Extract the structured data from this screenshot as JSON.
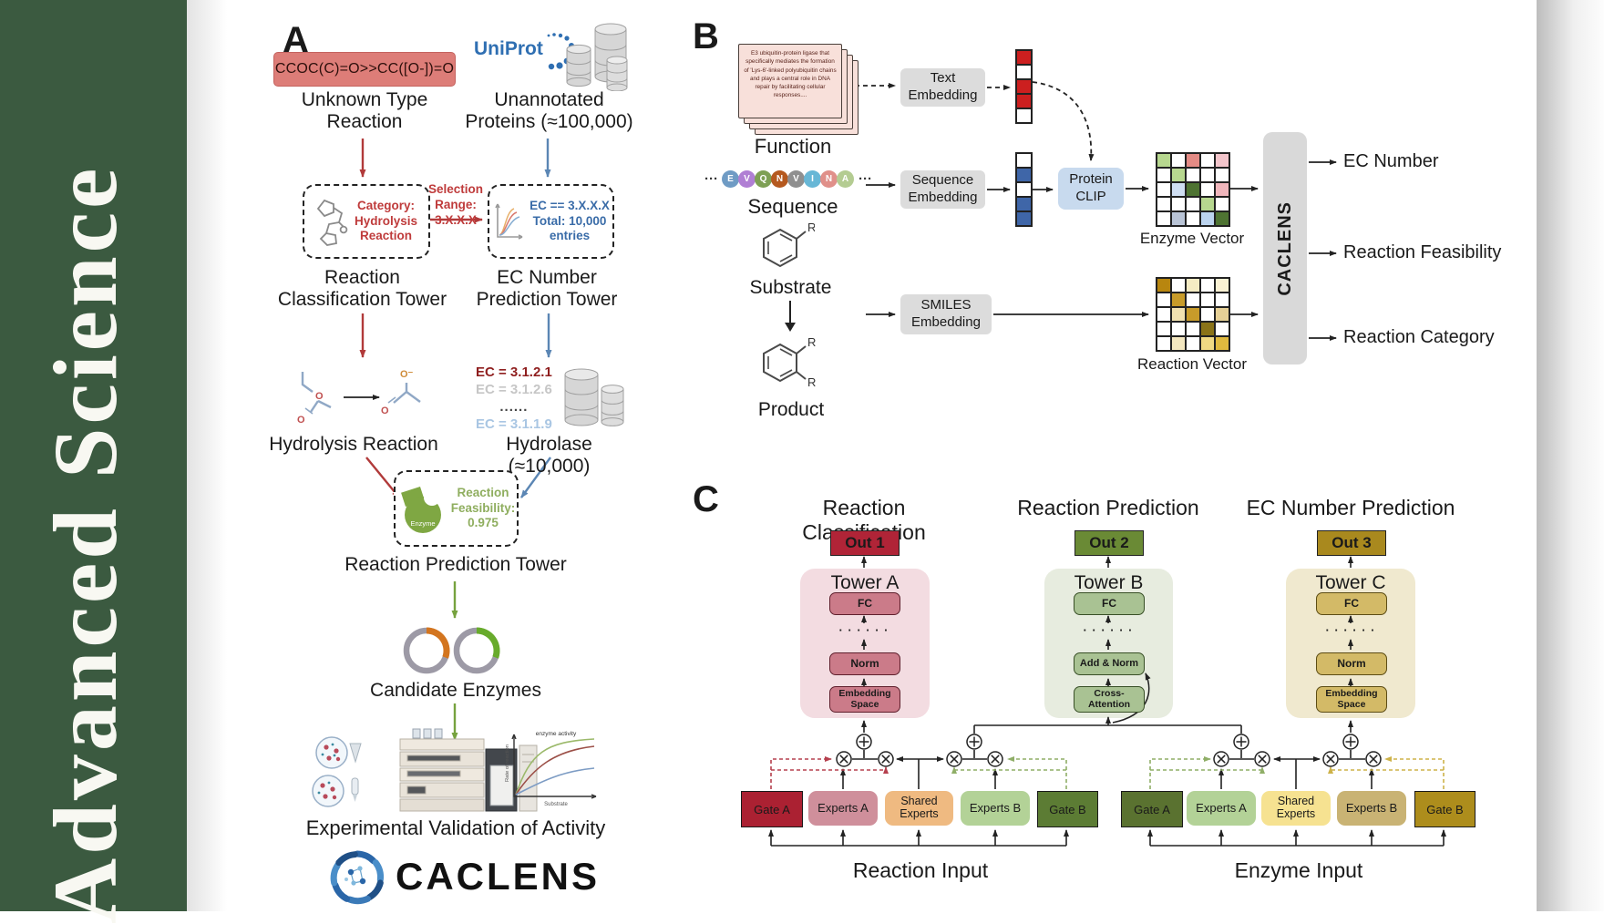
{
  "sidebar": {
    "title": "Advanced  Science"
  },
  "colors": {
    "sidebar_green": "#3b5a40",
    "accent_red": "#b13a3a",
    "accent_blue": "#5b86b4",
    "accent_green": "#76a23e",
    "uniprot_blue": "#2f6fb2",
    "gray_box": "#d9d9d9",
    "clip_blue": "#c8daee",
    "out1_red": "#b02437",
    "out2_green": "#6a8a35",
    "out3_gold": "#a9891e"
  },
  "panelA": {
    "label": "A",
    "smiles": "CCOC(C)=O>>CC([O-])=O",
    "unknown": "Unknown Type\nReaction",
    "uniprot": "UniProt",
    "unannotated": "Unannotated\nProteins (≈100,000)",
    "category_box": "Category:\nHydrolysis\nReaction",
    "selection": "Selection\nRange:\n3.X.X.X",
    "ec_box": "EC == 3.X.X.X\nTotal: 10,000\nentries",
    "tower_left": "Reaction\nClassification Tower",
    "tower_right": "EC Number\nPrediction Tower",
    "hydrolysis": "Hydrolysis Reaction",
    "ec_list": [
      "EC = 3.1.2.1",
      "EC = 3.1.2.6",
      "......",
      "EC = 3.1.1.9"
    ],
    "hydrolase": "Hydrolase (≈10,000)",
    "enzyme": "Enzyme",
    "feasibility": "Reaction\nFeasibility:\n0.975",
    "tower_bottom": "Reaction Prediction Tower",
    "candidates": "Candidate Enzymes",
    "plot": {
      "ylabel": "Rate of reaction",
      "xlabel": "Substrate",
      "annotation": "enzyme activity"
    },
    "validation": "Experimental Validation of Activity",
    "brand": "CACLENS"
  },
  "panelB": {
    "label": "B",
    "function_text": "E3 ubiquitin-protein ligase that specifically mediates the formation of 'Lys-6'-linked polyubiquitin chains and plays a central role in DNA repair by facilitating cellular responses....",
    "function_label": "Function",
    "ellipsis": "···",
    "sequence": [
      {
        "letter": "E",
        "color": "#6f9bc4"
      },
      {
        "letter": "V",
        "color": "#b07fd4"
      },
      {
        "letter": "Q",
        "color": "#7ea055"
      },
      {
        "letter": "N",
        "color": "#b5591f"
      },
      {
        "letter": "V",
        "color": "#8f8f8f"
      },
      {
        "letter": "I",
        "color": "#68b7d6"
      },
      {
        "letter": "N",
        "color": "#e0908a"
      },
      {
        "letter": "A",
        "color": "#b4cc92"
      }
    ],
    "sequence_label": "Sequence",
    "substrate_label": "Substrate",
    "product_label": "Product",
    "r_group": "R",
    "text_embedding": "Text\nEmbedding",
    "sequence_embedding": "Sequence\nEmbedding",
    "smiles_embedding": "SMILES\nEmbedding",
    "protein_clip": "Protein\nCLIP",
    "text_vector": [
      "#cc1f1f",
      "#ffffff",
      "#cc1f1f",
      "#cc1f1f",
      "#ffffff"
    ],
    "sequence_vector": [
      "#ffffff",
      "#3f66a8",
      "#ffffff",
      "#3f66a8",
      "#3f66a8"
    ],
    "enzyme_matrix": {
      "label": "Enzyme Vector",
      "cells": [
        "#b7d78f",
        "#ffffff",
        "#e48b85",
        "#ffffff",
        "#f3c5cb",
        "#ffffff",
        "#b7d78f",
        "#ffffff",
        "#ffffff",
        "#ffffff",
        "#ffffff",
        "#cfdef2",
        "#4e7332",
        "#ffffff",
        "#f0b6bc",
        "#ffffff",
        "#ffffff",
        "#ffffff",
        "#b7d78f",
        "#ffffff",
        "#ffffff",
        "#b9c4d6",
        "#ffffff",
        "#bcd4ee",
        "#4e7332"
      ]
    },
    "reaction_matrix": {
      "label": "Reaction Vector",
      "cells": [
        "#b8860f",
        "#ffffff",
        "#f4ebc3",
        "#ffffff",
        "#faf1d3",
        "#ffffff",
        "#c79b2a",
        "#ffffff",
        "#ffffff",
        "#ffffff",
        "#ffffff",
        "#f1e1b0",
        "#c79b2a",
        "#ffffff",
        "#e6d096",
        "#ffffff",
        "#ffffff",
        "#ffffff",
        "#8a7318",
        "#ffffff",
        "#ffffff",
        "#f4e8c0",
        "#ffffff",
        "#f0d983",
        "#dfb93f"
      ]
    },
    "caclens": "CACLENS",
    "outputs": [
      "EC Number",
      "Reaction Feasibility",
      "Reaction Category"
    ]
  },
  "panelC": {
    "label": "C",
    "dots": "· · · · · ·",
    "towers": [
      {
        "title": "Reaction Classification",
        "out": "Out 1",
        "name": "Tower A",
        "fc": "FC",
        "mid": "Norm",
        "bottom": "Embedding\nSpace"
      },
      {
        "title": "Reaction Prediction",
        "out": "Out 2",
        "name": "Tower B",
        "fc": "FC",
        "mid": "Add & Norm",
        "bottom": "Cross-\nAttention"
      },
      {
        "title": "EC Number Prediction",
        "out": "Out 3",
        "name": "Tower C",
        "fc": "FC",
        "mid": "Norm",
        "bottom": "Embedding\nSpace"
      }
    ],
    "moe_left": {
      "gate_a": "Gate A",
      "experts_a": "Experts A",
      "shared": "Shared\nExperts",
      "experts_b": "Experts B",
      "gate_b": "Gate B",
      "input": "Reaction Input"
    },
    "moe_right": {
      "gate_a": "Gate A",
      "experts_a": "Experts A",
      "shared": "Shared\nExperts",
      "experts_b": "Experts B",
      "gate_b": "Gate B",
      "input": "Enzyme Input"
    }
  }
}
